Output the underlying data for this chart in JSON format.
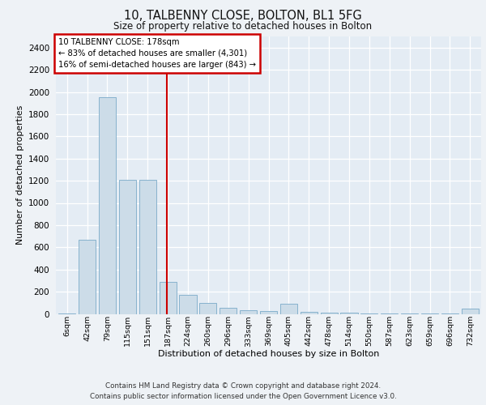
{
  "title_line1": "10, TALBENNY CLOSE, BOLTON, BL1 5FG",
  "title_line2": "Size of property relative to detached houses in Bolton",
  "xlabel": "Distribution of detached houses by size in Bolton",
  "ylabel": "Number of detached properties",
  "bar_color": "#ccdce8",
  "bar_edge_color": "#7aaac8",
  "categories": [
    "6sqm",
    "42sqm",
    "79sqm",
    "115sqm",
    "151sqm",
    "187sqm",
    "224sqm",
    "260sqm",
    "296sqm",
    "333sqm",
    "369sqm",
    "405sqm",
    "442sqm",
    "478sqm",
    "514sqm",
    "550sqm",
    "587sqm",
    "623sqm",
    "659sqm",
    "696sqm",
    "732sqm"
  ],
  "values": [
    5,
    670,
    1950,
    1210,
    1210,
    290,
    175,
    100,
    55,
    30,
    22,
    90,
    15,
    8,
    8,
    4,
    4,
    4,
    4,
    4,
    48
  ],
  "ylim": [
    0,
    2500
  ],
  "yticks": [
    0,
    200,
    400,
    600,
    800,
    1000,
    1200,
    1400,
    1600,
    1800,
    2000,
    2200,
    2400
  ],
  "vline_x_index": 4.97,
  "vline_color": "#cc0000",
  "annotation_title": "10 TALBENNY CLOSE: 178sqm",
  "annotation_line2": "← 83% of detached houses are smaller (4,301)",
  "annotation_line3": "16% of semi-detached houses are larger (843) →",
  "annotation_box_color": "#cc0000",
  "footer_line1": "Contains HM Land Registry data © Crown copyright and database right 2024.",
  "footer_line2": "Contains public sector information licensed under the Open Government Licence v3.0.",
  "background_color": "#eef2f6",
  "plot_bg_color": "#e4ecf4"
}
